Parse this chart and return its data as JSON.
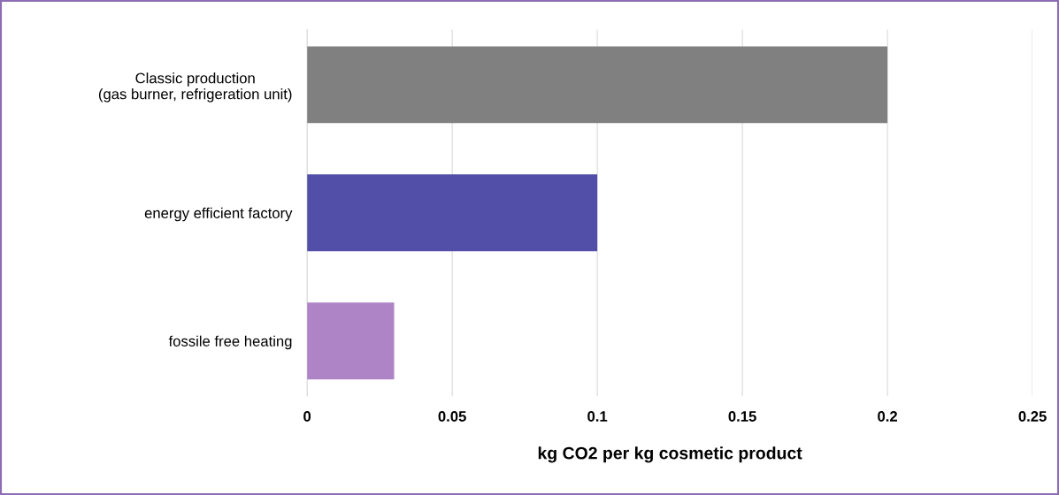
{
  "chart_data": {
    "type": "bar",
    "orientation": "horizontal",
    "xlabel": "kg CO2 per kg cosmetic product",
    "categories": [
      "Classic production\n(gas burner, refrigeration unit)",
      "energy efficient factory",
      "fossile free heating"
    ],
    "values": [
      0.2,
      0.1,
      0.03
    ],
    "colors": [
      "#808080",
      "#524fa9",
      "#ae84c6"
    ],
    "xlim": [
      0,
      0.25
    ],
    "xticks": [
      0,
      0.05,
      0.1,
      0.15,
      0.2,
      0.25
    ],
    "grid": "x",
    "legend": false
  }
}
